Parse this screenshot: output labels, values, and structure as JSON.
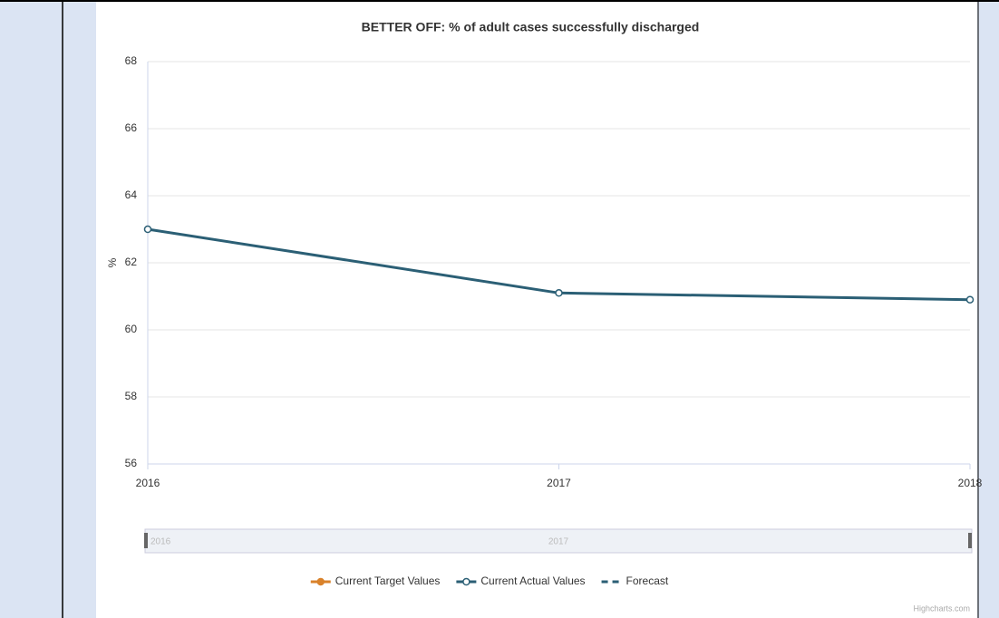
{
  "chart_data": {
    "type": "line",
    "title": "BETTER OFF: % of adult cases successfully discharged",
    "y_label": "%",
    "x": [
      2016,
      2017,
      2018
    ],
    "xlim": [
      2016,
      2018
    ],
    "xticks": [
      2016,
      2017,
      2018
    ],
    "ylim": [
      56,
      68
    ],
    "yticks": [
      56,
      58,
      60,
      62,
      64,
      66,
      68
    ],
    "grid": true,
    "legend": "bottom",
    "series": [
      {
        "name": "Current Target Values",
        "color": "#d9822b",
        "dash": false,
        "values": [
          null,
          null,
          null
        ]
      },
      {
        "name": "Current Actual Values",
        "color": "#2b5f75",
        "dash": false,
        "values": [
          63.0,
          61.1,
          60.9
        ]
      },
      {
        "name": "Forecast",
        "color": "#2b5f75",
        "dash": true,
        "values": [
          null,
          null,
          null
        ]
      }
    ],
    "navigator_labels": [
      "2016",
      "2017"
    ],
    "credits": "Highcharts.com"
  }
}
